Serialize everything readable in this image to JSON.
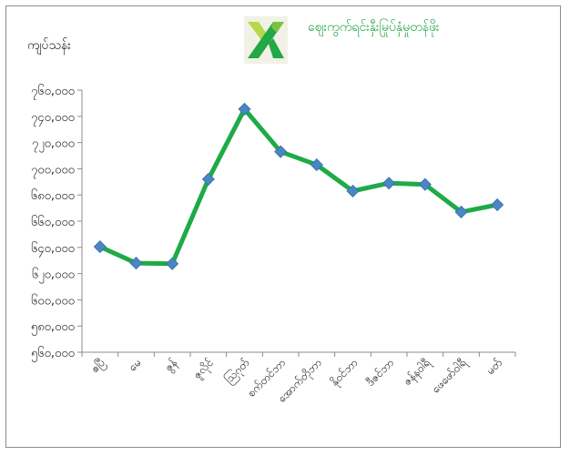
{
  "header": {
    "unit_label": "ကျပ်သန်း",
    "title": "ဈေးကွက်ရင်းနှီးမြုပ်နှံမှုတန်ဖိုး",
    "logo_icon": "green-x-logo-icon"
  },
  "chart_data": {
    "type": "line",
    "title": "ဈေးကွက်ရင်းနှီးမြုပ်နှံမှုတန်ဖိုး",
    "ylabel": "ကျပ်သန်း",
    "xlabel": "",
    "ylim": [
      560000,
      760000
    ],
    "ytick_values": [
      560000,
      580000,
      600000,
      620000,
      640000,
      660000,
      680000,
      700000,
      720000,
      740000,
      760000
    ],
    "ytick_labels": [
      "၅၆၀,၀၀၀",
      "၅၈၀,၀၀၀",
      "၆၀၀,၀၀၀",
      "၆၂၀,၀၀၀",
      "၆၄၀,၀၀၀",
      "၆၆၀,၀၀၀",
      "၆၈၀,၀၀၀",
      "၇၀၀,၀၀၀",
      "၇၂၀,၀၀၀",
      "၇၄၀,၀၀၀",
      "၇၆၀,၀၀၀"
    ],
    "categories": [
      "ဧပြီ",
      "မေ",
      "ဇွန်",
      "ဇူလိုင်",
      "ဩဂုတ်",
      "စက်တင်ဘာ",
      "အောက်တိုဘာ",
      "နိုဝင်ဘာ",
      "ဒီဇင်ဘာ",
      "ဇန်နဝါရီ",
      "ဖေဖော်ဝါရီ",
      "မတ်"
    ],
    "series": [
      {
        "values": [
          640500,
          628000,
          627500,
          692000,
          745500,
          713000,
          703000,
          683000,
          689000,
          688000,
          667000,
          672500
        ],
        "line_color": "#1faa48",
        "marker_color": "#4b86c2"
      }
    ],
    "grid": false,
    "legend": "none"
  }
}
